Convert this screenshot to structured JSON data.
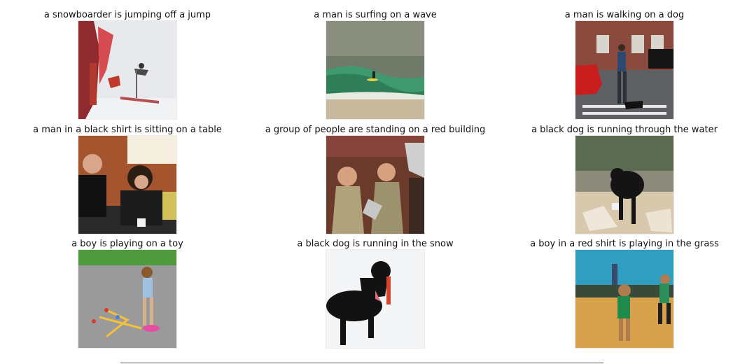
{
  "captions": [
    "a snowboarder is jumping off a jump",
    "a man is surfing on a wave",
    "a man is walking on a dog",
    "a man in a black shirt is sitting on a table",
    "a group of people are standing on a red building",
    "a black dog is running through the water",
    "a boy is playing on a toy",
    "a black dog is running in the snow",
    "a boy in a red shirt is playing in the grass"
  ]
}
